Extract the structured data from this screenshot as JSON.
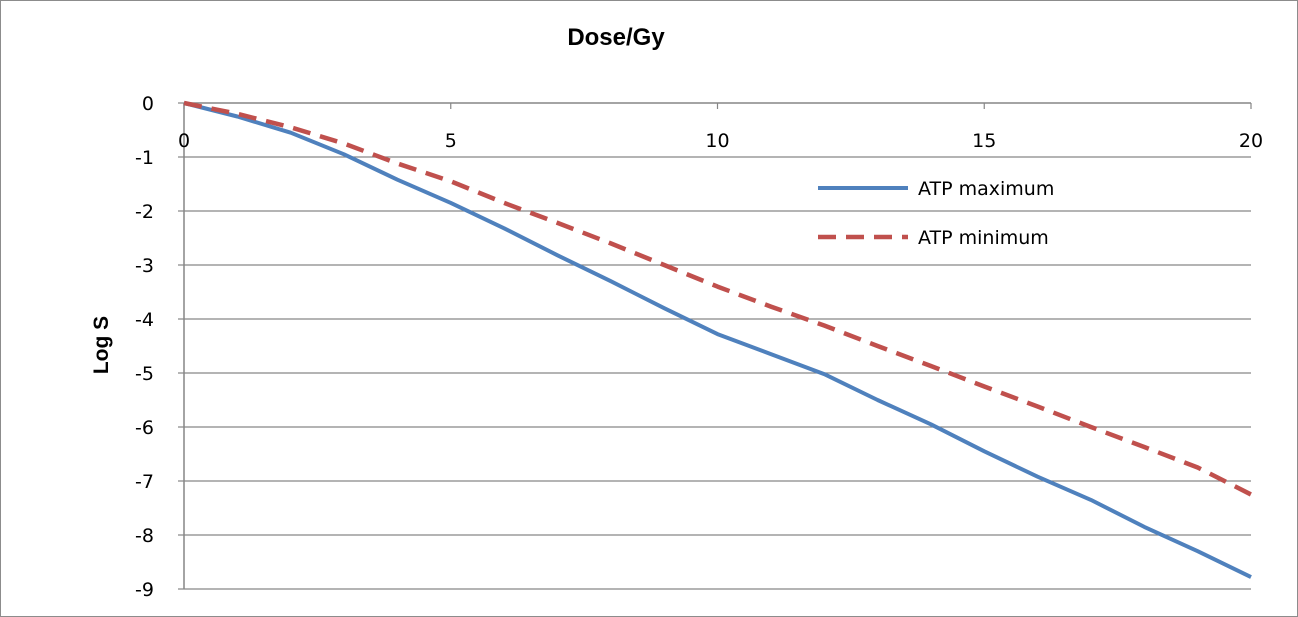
{
  "chart_data": {
    "type": "line",
    "title": "Dose/Gy",
    "xlabel": "Dose/Gy",
    "ylabel": "Log S",
    "xlim": [
      0,
      20
    ],
    "ylim": [
      -9,
      0
    ],
    "x_ticks": [
      "0",
      "5",
      "10",
      "15",
      "20"
    ],
    "y_ticks": [
      "0",
      "-1",
      "-2",
      "-3",
      "-4",
      "-5",
      "-6",
      "-7",
      "-8",
      "-9"
    ],
    "x_axis_position": "top",
    "grid": "horizontal",
    "legend_position": "right",
    "series": [
      {
        "name": "ATP maximum",
        "color": "#4f81bd",
        "style": "solid",
        "x": [
          0,
          1,
          2,
          3,
          4,
          5,
          6,
          7,
          8,
          9,
          10,
          11,
          12,
          13,
          14,
          15,
          16,
          17,
          18,
          19,
          20
        ],
        "y": [
          0,
          -0.25,
          -0.55,
          -0.95,
          -1.42,
          -1.85,
          -2.32,
          -2.82,
          -3.3,
          -3.8,
          -4.28,
          -4.65,
          -5.02,
          -5.5,
          -5.95,
          -6.45,
          -6.92,
          -7.35,
          -7.85,
          -8.3,
          -8.78
        ]
      },
      {
        "name": "ATP minimum",
        "color": "#c0504d",
        "style": "dashed",
        "x": [
          0,
          1,
          2,
          3,
          4,
          5,
          6,
          7,
          8,
          9,
          10,
          11,
          12,
          13,
          14,
          15,
          16,
          17,
          18,
          19,
          20
        ],
        "y": [
          0,
          -0.2,
          -0.45,
          -0.75,
          -1.12,
          -1.45,
          -1.85,
          -2.22,
          -2.6,
          -3.0,
          -3.4,
          -3.77,
          -4.12,
          -4.5,
          -4.87,
          -5.25,
          -5.62,
          -6.0,
          -6.37,
          -6.75,
          -7.25
        ]
      }
    ]
  }
}
